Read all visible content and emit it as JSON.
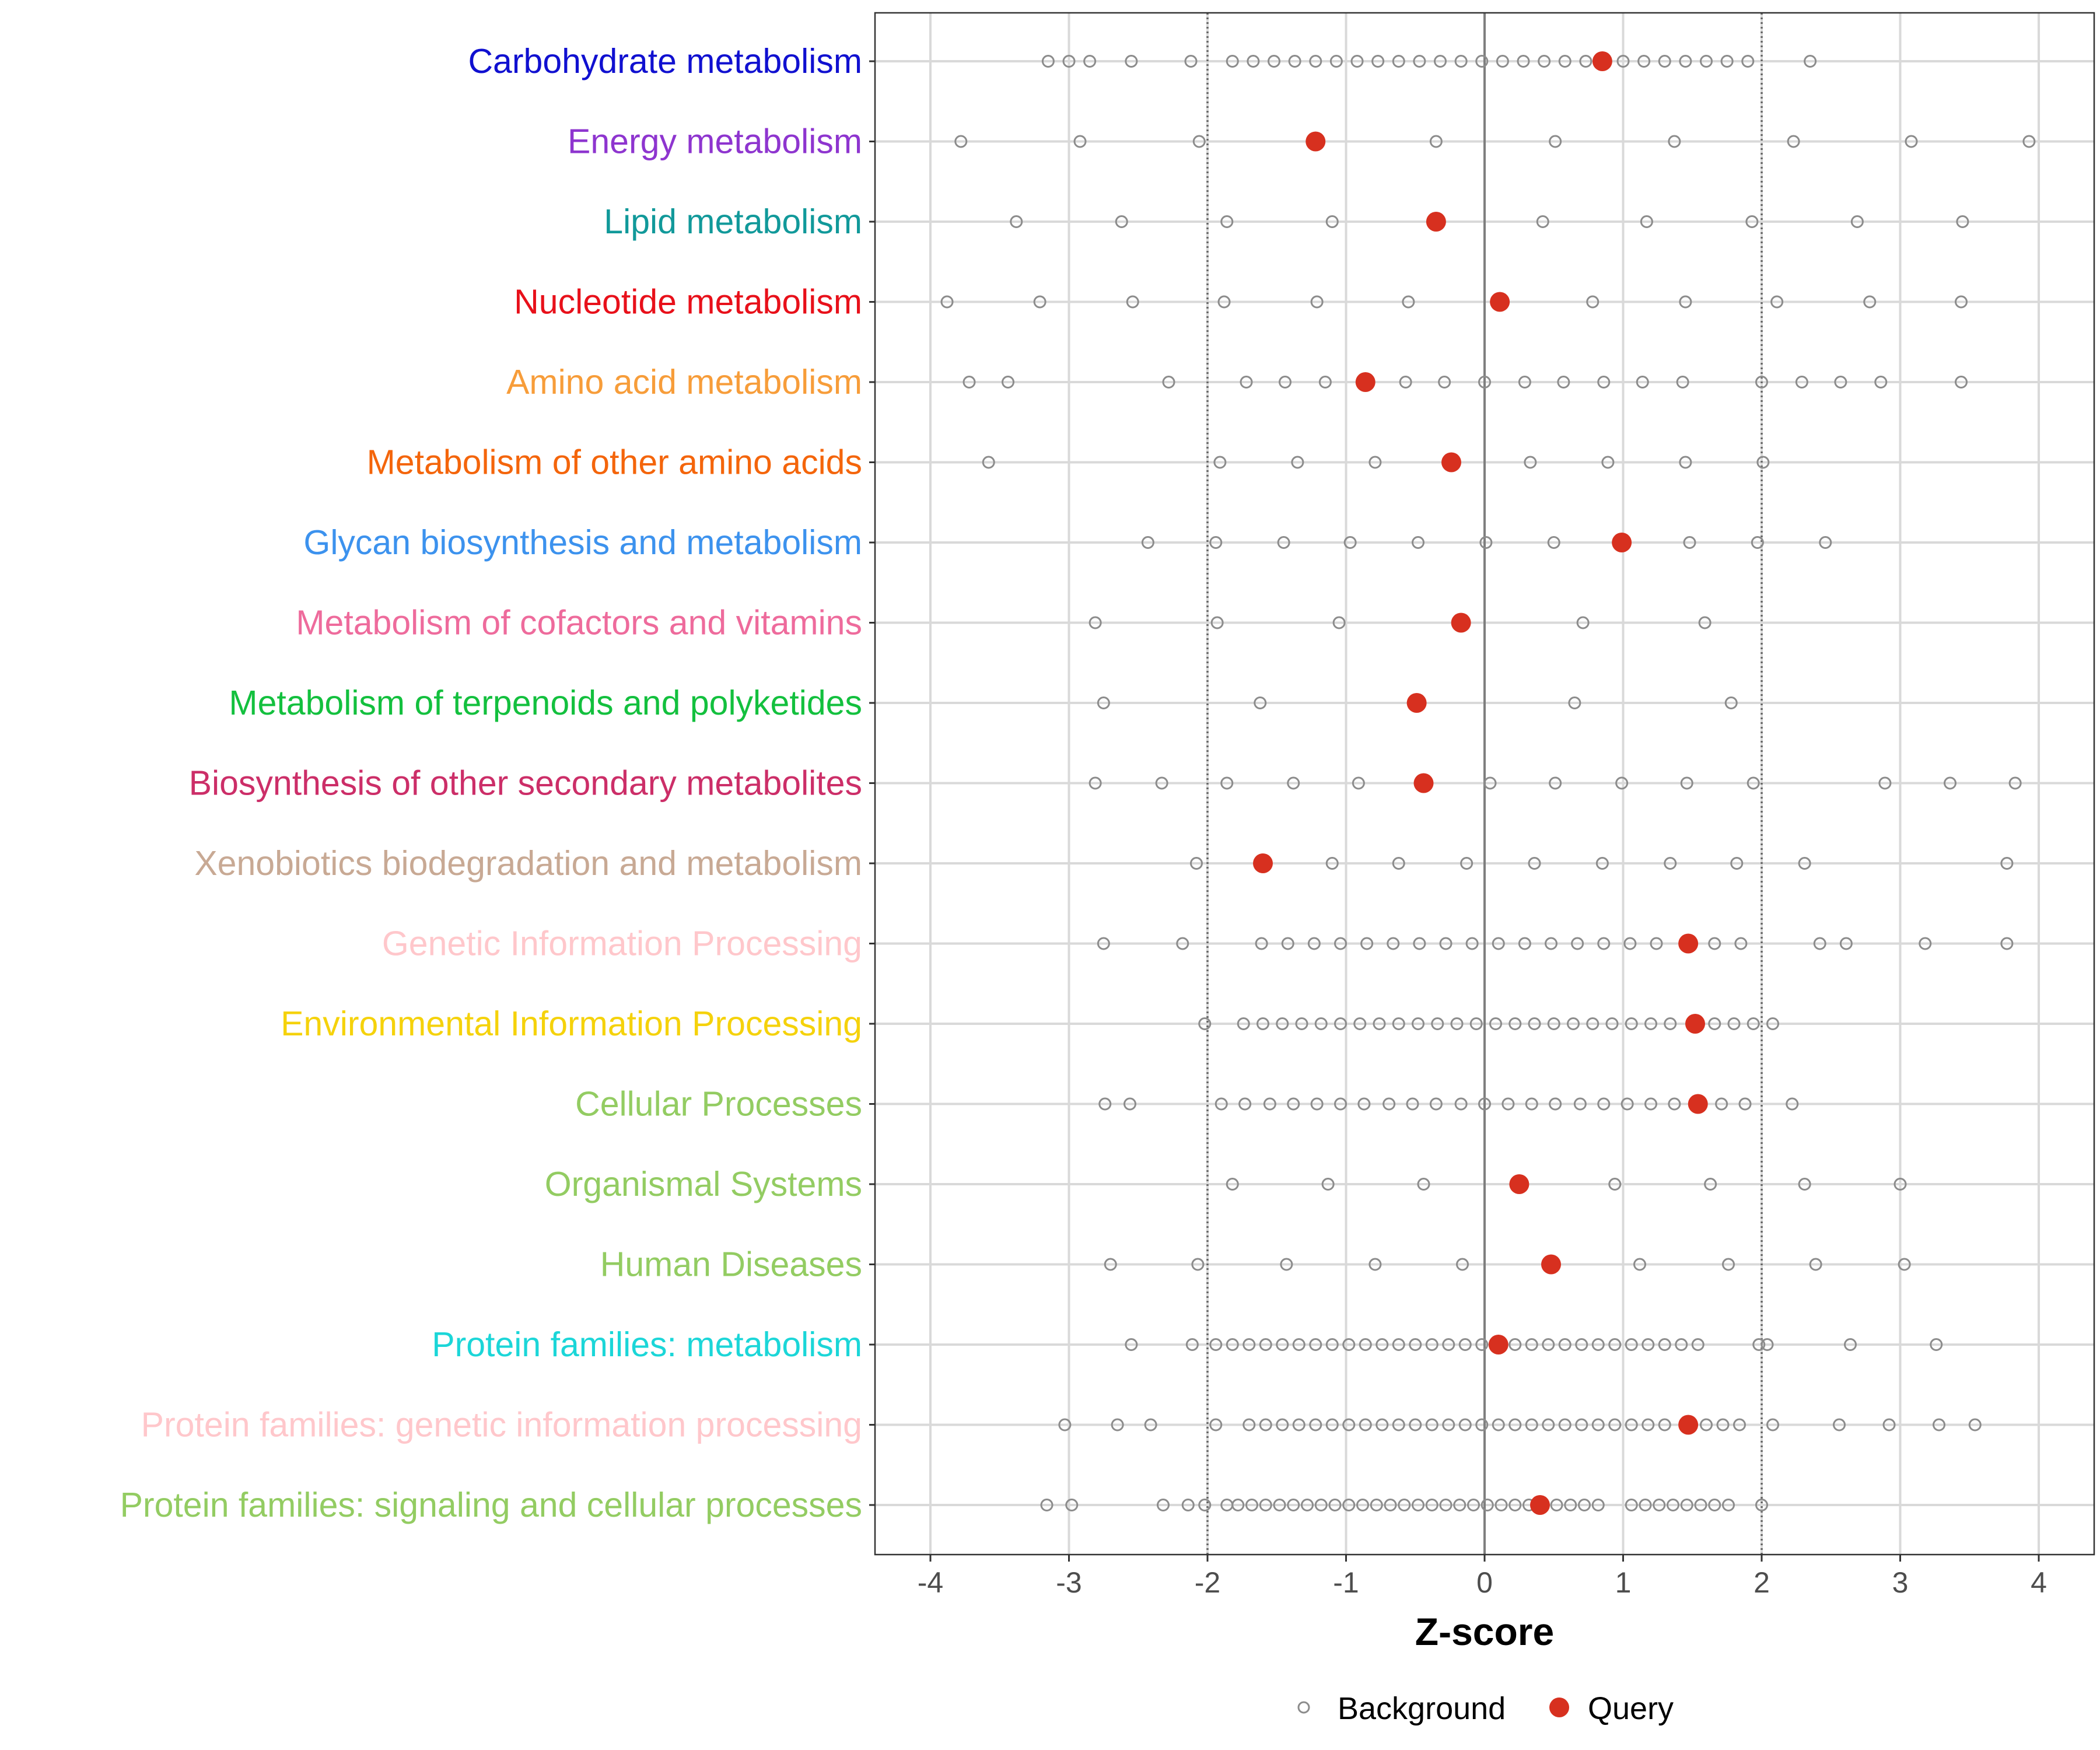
{
  "chart_data": {
    "type": "scatter",
    "xlabel": "Z-score",
    "xlim": [
      -4.4,
      4.4
    ],
    "x_ticks": [
      "-4",
      "-3",
      "-2",
      "-1",
      "0",
      "1",
      "2",
      "3",
      "4"
    ],
    "reference_lines": {
      "zero": 0,
      "dotted": [
        -2,
        2
      ]
    },
    "legend": {
      "position": "bottom",
      "items": [
        {
          "key": "background",
          "label": "Background"
        },
        {
          "key": "query",
          "label": "Query"
        }
      ]
    },
    "colors": {
      "background_point": "#8c8c8c",
      "query_point": "#d7301f",
      "grid": "#d9d9d9",
      "zero_line": "#7f7f7f"
    },
    "categories": [
      {
        "label": "Carbohydrate metabolism",
        "color": "#1010d0",
        "query": 0.85,
        "background": [
          -3.15,
          -3.0,
          -2.85,
          -2.55,
          -2.12,
          -1.82,
          -1.67,
          -1.52,
          -1.37,
          -1.22,
          -1.07,
          -0.92,
          -0.77,
          -0.62,
          -0.47,
          -0.32,
          -0.17,
          -0.02,
          0.13,
          0.28,
          0.43,
          0.58,
          0.73,
          1.0,
          1.15,
          1.3,
          1.45,
          1.6,
          1.75,
          1.9,
          2.35
        ]
      },
      {
        "label": "Energy metabolism",
        "color": "#8e35cf",
        "query": -1.22,
        "background": [
          -3.78,
          -2.92,
          -2.06,
          -0.35,
          0.51,
          1.37,
          2.23,
          3.08,
          3.93
        ]
      },
      {
        "label": "Lipid metabolism",
        "color": "#11999a",
        "query": -0.35,
        "background": [
          -3.38,
          -2.62,
          -1.86,
          -1.1,
          0.42,
          1.17,
          1.93,
          2.69,
          3.45
        ]
      },
      {
        "label": "Nucleotide metabolism",
        "color": "#e8101a",
        "query": 0.11,
        "background": [
          -3.88,
          -3.21,
          -2.54,
          -1.88,
          -1.21,
          -0.55,
          0.78,
          1.45,
          2.11,
          2.78,
          3.44
        ]
      },
      {
        "label": "Amino acid metabolism",
        "color": "#f79d3a",
        "query": -0.86,
        "background": [
          -3.72,
          -3.44,
          -2.28,
          -1.72,
          -1.44,
          -1.15,
          -0.57,
          -0.29,
          0.0,
          0.29,
          0.57,
          0.86,
          1.14,
          1.43,
          2.0,
          2.29,
          2.57,
          2.86,
          3.44
        ]
      },
      {
        "label": "Metabolism of other amino acids",
        "color": "#f4650b",
        "query": -0.24,
        "background": [
          -3.58,
          -1.91,
          -1.35,
          -0.79,
          0.33,
          0.89,
          1.45,
          2.01
        ]
      },
      {
        "label": "Glycan biosynthesis and metabolism",
        "color": "#3c92ee",
        "query": 0.99,
        "background": [
          -2.43,
          -1.94,
          -1.45,
          -0.97,
          -0.48,
          0.01,
          0.5,
          1.48,
          1.97,
          2.46
        ]
      },
      {
        "label": "Metabolism of cofactors and vitamins",
        "color": "#ee6b9c",
        "query": -0.17,
        "background": [
          -2.81,
          -1.93,
          -1.05,
          0.71,
          1.59
        ]
      },
      {
        "label": "Metabolism of terpenoids and polyketides",
        "color": "#13c03e",
        "query": -0.49,
        "background": [
          -2.75,
          -1.62,
          0.65,
          1.78
        ]
      },
      {
        "label": "Biosynthesis of other secondary metabolites",
        "color": "#cc2e68",
        "query": -0.44,
        "background": [
          -2.81,
          -2.33,
          -1.86,
          -1.38,
          -0.91,
          0.04,
          0.51,
          0.99,
          1.46,
          1.94,
          2.89,
          3.36,
          3.83
        ]
      },
      {
        "label": "Xenobiotics biodegradation and metabolism",
        "color": "#c8a994",
        "query": -1.6,
        "background": [
          -2.08,
          -1.1,
          -0.62,
          -0.13,
          0.36,
          0.85,
          1.34,
          1.82,
          2.31,
          3.77
        ]
      },
      {
        "label": "Genetic Information Processing",
        "color": "#ffc7cb",
        "query": 1.47,
        "background": [
          -2.75,
          -2.18,
          -1.61,
          -1.42,
          -1.23,
          -1.04,
          -0.85,
          -0.66,
          -0.47,
          -0.28,
          -0.09,
          0.1,
          0.29,
          0.48,
          0.67,
          0.86,
          1.05,
          1.24,
          1.66,
          1.85,
          2.42,
          2.61,
          3.18,
          3.77
        ]
      },
      {
        "label": "Environmental Information Processing",
        "color": "#f5d20b",
        "query": 1.52,
        "background": [
          -2.02,
          -1.74,
          -1.6,
          -1.46,
          -1.32,
          -1.18,
          -1.04,
          -0.9,
          -0.76,
          -0.62,
          -0.48,
          -0.34,
          -0.2,
          -0.06,
          0.08,
          0.22,
          0.36,
          0.5,
          0.64,
          0.78,
          0.92,
          1.06,
          1.2,
          1.34,
          1.66,
          1.8,
          1.94,
          2.08
        ]
      },
      {
        "label": "Cellular Processes",
        "color": "#93cc62",
        "query": 1.54,
        "background": [
          -2.74,
          -2.56,
          -1.9,
          -1.73,
          -1.55,
          -1.38,
          -1.21,
          -1.04,
          -0.87,
          -0.69,
          -0.52,
          -0.35,
          -0.17,
          0.0,
          0.17,
          0.34,
          0.51,
          0.69,
          0.86,
          1.03,
          1.2,
          1.37,
          1.71,
          1.88,
          2.22
        ]
      },
      {
        "label": "Organismal Systems",
        "color": "#93cc62",
        "query": 0.25,
        "background": [
          -1.82,
          -1.13,
          -0.44,
          0.94,
          1.63,
          2.31,
          3.0
        ]
      },
      {
        "label": "Human Diseases",
        "color": "#93cc62",
        "query": 0.48,
        "background": [
          -2.7,
          -2.07,
          -1.43,
          -0.79,
          -0.16,
          1.12,
          1.76,
          2.39,
          3.03
        ]
      },
      {
        "label": "Protein families: metabolism",
        "color": "#1bd6d8",
        "query": 0.1,
        "background": [
          -2.55,
          -2.11,
          -1.94,
          -1.82,
          -1.7,
          -1.58,
          -1.46,
          -1.34,
          -1.22,
          -1.1,
          -0.98,
          -0.86,
          -0.74,
          -0.62,
          -0.5,
          -0.38,
          -0.26,
          -0.14,
          -0.02,
          0.22,
          0.34,
          0.46,
          0.58,
          0.7,
          0.82,
          0.94,
          1.06,
          1.18,
          1.3,
          1.42,
          1.54,
          1.98,
          2.04,
          2.64,
          3.26
        ]
      },
      {
        "label": "Protein families: genetic information processing",
        "color": "#ffc7cb",
        "query": 1.47,
        "background": [
          -3.03,
          -2.65,
          -2.41,
          -1.94,
          -1.7,
          -1.58,
          -1.46,
          -1.34,
          -1.22,
          -1.1,
          -0.98,
          -0.86,
          -0.74,
          -0.62,
          -0.5,
          -0.38,
          -0.26,
          -0.14,
          -0.02,
          0.1,
          0.22,
          0.34,
          0.46,
          0.58,
          0.7,
          0.82,
          0.94,
          1.06,
          1.18,
          1.3,
          1.6,
          1.72,
          1.84,
          2.08,
          2.56,
          2.92,
          3.28,
          3.54
        ]
      },
      {
        "label": "Protein families: signaling and cellular processes",
        "color": "#93cc62",
        "query": 0.4,
        "background": [
          -3.16,
          -2.98,
          -2.32,
          -2.14,
          -2.02,
          -1.86,
          -1.78,
          -1.68,
          -1.58,
          -1.48,
          -1.38,
          -1.28,
          -1.18,
          -1.08,
          -0.98,
          -0.88,
          -0.78,
          -0.68,
          -0.58,
          -0.48,
          -0.38,
          -0.28,
          -0.18,
          -0.08,
          0.02,
          0.12,
          0.22,
          0.32,
          0.52,
          0.62,
          0.72,
          0.82,
          1.06,
          1.16,
          1.26,
          1.36,
          1.46,
          1.56,
          1.66,
          1.76,
          2.0
        ]
      }
    ]
  }
}
